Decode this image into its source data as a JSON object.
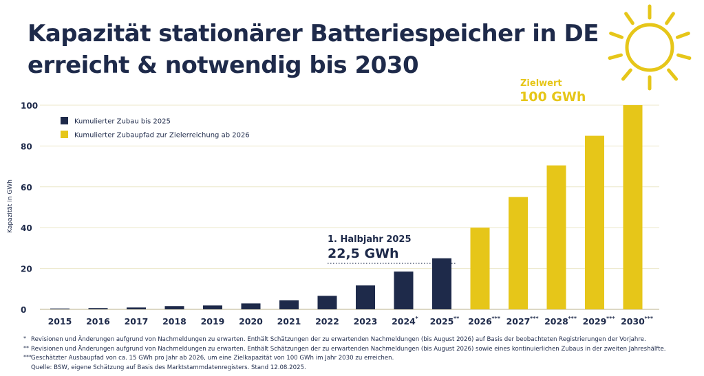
{
  "title": {
    "line1": "Kapazität stationärer Batteriespeicher in DE",
    "line2": "erreicht & notwendig bis 2030"
  },
  "colors": {
    "navy": "#1e2a4a",
    "yellow": "#e6c619",
    "grid": "#ece7c8",
    "sun": "#e6c619"
  },
  "icons": {
    "sun": "sun-icon"
  },
  "chart_data": {
    "type": "bar",
    "ylabel": "Kapazität in GWh",
    "ylim": [
      0,
      100
    ],
    "yticks": [
      0,
      20,
      40,
      60,
      80,
      100
    ],
    "grid": "horizontal",
    "legend_position": "top-left",
    "categories": [
      "2015",
      "2016",
      "2017",
      "2018",
      "2019",
      "2020",
      "2021",
      "2022",
      "2023",
      "2024",
      "2025",
      "2026",
      "2027",
      "2028",
      "2029",
      "2030"
    ],
    "category_marks": [
      "",
      "",
      "",
      "",
      "",
      "",
      "",
      "",
      "",
      "*",
      "**",
      "***",
      "***",
      "***",
      "***",
      "***"
    ],
    "series": [
      {
        "name": "Kumulierter Zubau bis 2025",
        "color": "#1e2a4a",
        "values": [
          0.4,
          0.6,
          0.9,
          1.6,
          1.9,
          2.9,
          4.4,
          6.6,
          11.7,
          18.5,
          25,
          null,
          null,
          null,
          null,
          null
        ]
      },
      {
        "name": "Kumulierter Zubaupfad zur Zielerreichung ab 2026",
        "color": "#e6c619",
        "values": [
          null,
          null,
          null,
          null,
          null,
          null,
          null,
          null,
          null,
          null,
          null,
          40,
          55,
          70.5,
          85,
          100
        ]
      }
    ],
    "annotations": [
      {
        "label": "1. Halbjahr 2025",
        "value_text": "22,5 GWh",
        "category": "2025",
        "y": 22.5,
        "color": "#1e2a4a"
      },
      {
        "label": "Zielwert",
        "value_text": "100 GWh",
        "category": "2030",
        "y": 100,
        "color": "#e6c619"
      }
    ]
  },
  "footnotes": [
    {
      "mark": "*",
      "text": "Revisionen und Änderungen aufgrund von Nachmeldungen zu erwarten. Enthält Schätzungen der zu erwartenden Nachmeldungen (bis August 2026) auf Basis der beobachteten Registrierungen der Vorjahre."
    },
    {
      "mark": "**",
      "text": "Revisionen und Änderungen aufgrund von Nachmeldungen zu erwarten. Enthält Schätzungen der zu erwartenden Nachmeldungen (bis August 2026) sowie eines kontinuierlichen Zubaus in der zweiten Jahreshälfte."
    },
    {
      "mark": "***",
      "text": "Geschätzter Ausbaupfad von ca. 15 GWh pro Jahr ab 2026, um eine Zielkapazität von 100 GWh im Jahr 2030 zu erreichen."
    },
    {
      "mark": "",
      "text": "Quelle: BSW, eigene Schätzung auf Basis des Marktstammdatenregisters. Stand 12.08.2025."
    }
  ]
}
